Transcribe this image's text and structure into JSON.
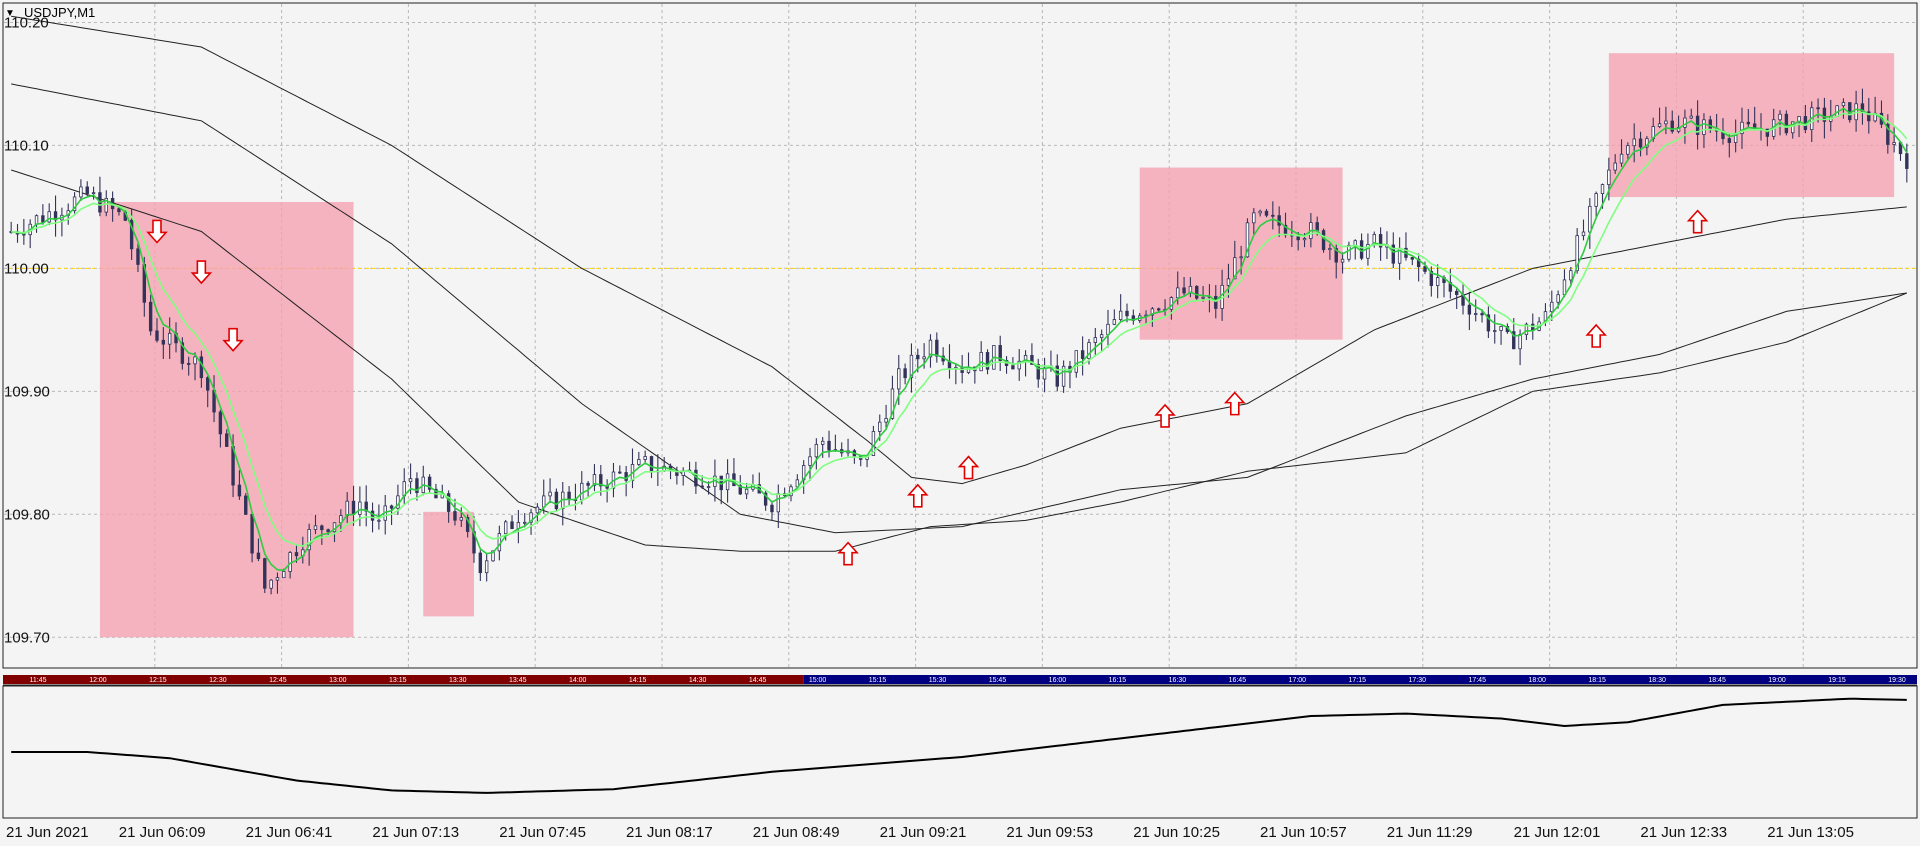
{
  "window": {
    "symbol_title": "USDJPY,M1",
    "menu_glyph": "▼"
  },
  "colors": {
    "background": "#f4f4f4",
    "grid": "#b8b8b8",
    "candle": "#33335a",
    "fast_ma": "#2ecc40",
    "slow_ma": "#7fff7f",
    "trend_ma": "#222222",
    "zone": "#f5a0b0",
    "arrow": "#e00000",
    "session_bar_red": "#800000",
    "session_bar_blue": "#000080",
    "level_line": "#ffd700"
  },
  "chart_data": {
    "type": "candlestick",
    "symbol": "USDJPY",
    "timeframe": "M1",
    "ylim": [
      109.675,
      110.215
    ],
    "y_ticks": [
      "110.20",
      "110.10",
      "110.00",
      "109.90",
      "109.80",
      "109.70"
    ],
    "x_tick_labels": [
      "21 Jun 2021",
      "21 Jun 06:09",
      "21 Jun 06:41",
      "21 Jun 07:13",
      "21 Jun 07:45",
      "21 Jun 08:17",
      "21 Jun 08:49",
      "21 Jun 09:21",
      "21 Jun 09:53",
      "21 Jun 10:25",
      "21 Jun 10:57",
      "21 Jun 11:29",
      "21 Jun 12:01",
      "21 Jun 12:33",
      "21 Jun 13:05"
    ],
    "horizontal_level": 110.0,
    "bars": 300,
    "price_path": [
      [
        0,
        110.03
      ],
      [
        12,
        110.06
      ],
      [
        18,
        110.04
      ],
      [
        22,
        109.95
      ],
      [
        30,
        109.92
      ],
      [
        40,
        109.74
      ],
      [
        46,
        109.78
      ],
      [
        55,
        109.81
      ],
      [
        58,
        109.79
      ],
      [
        63,
        109.83
      ],
      [
        70,
        109.8
      ],
      [
        74,
        109.76
      ],
      [
        80,
        109.8
      ],
      [
        90,
        109.82
      ],
      [
        100,
        109.84
      ],
      [
        110,
        109.83
      ],
      [
        120,
        109.81
      ],
      [
        128,
        109.86
      ],
      [
        134,
        109.84
      ],
      [
        140,
        109.91
      ],
      [
        145,
        109.94
      ],
      [
        150,
        109.92
      ],
      [
        156,
        109.93
      ],
      [
        165,
        109.91
      ],
      [
        175,
        109.96
      ],
      [
        185,
        109.98
      ],
      [
        190,
        109.97
      ],
      [
        196,
        110.04
      ],
      [
        205,
        110.03
      ],
      [
        210,
        110.01
      ],
      [
        215,
        110.02
      ],
      [
        222,
        110.0
      ],
      [
        230,
        109.97
      ],
      [
        236,
        109.94
      ],
      [
        242,
        109.96
      ],
      [
        248,
        110.03
      ],
      [
        254,
        110.1
      ],
      [
        262,
        110.12
      ],
      [
        272,
        110.11
      ],
      [
        282,
        110.12
      ],
      [
        292,
        110.13
      ],
      [
        299,
        110.09
      ]
    ],
    "trend_ma_a": [
      [
        0,
        110.205
      ],
      [
        30,
        110.18
      ],
      [
        60,
        110.1
      ],
      [
        90,
        110.0
      ],
      [
        120,
        109.92
      ],
      [
        135,
        109.86
      ],
      [
        142,
        109.83
      ],
      [
        150,
        109.825
      ],
      [
        160,
        109.84
      ],
      [
        175,
        109.87
      ],
      [
        195,
        109.89
      ],
      [
        215,
        109.95
      ],
      [
        240,
        110.0
      ],
      [
        260,
        110.02
      ],
      [
        280,
        110.04
      ],
      [
        299,
        110.05
      ]
    ],
    "trend_ma_b": [
      [
        0,
        110.15
      ],
      [
        30,
        110.12
      ],
      [
        60,
        110.02
      ],
      [
        90,
        109.89
      ],
      [
        115,
        109.8
      ],
      [
        130,
        109.785
      ],
      [
        150,
        109.79
      ],
      [
        175,
        109.82
      ],
      [
        195,
        109.83
      ],
      [
        220,
        109.88
      ],
      [
        240,
        109.91
      ],
      [
        260,
        109.93
      ],
      [
        280,
        109.965
      ],
      [
        299,
        109.98
      ]
    ],
    "trend_ma_c": [
      [
        0,
        110.08
      ],
      [
        30,
        110.03
      ],
      [
        60,
        109.91
      ],
      [
        80,
        109.81
      ],
      [
        100,
        109.775
      ],
      [
        115,
        109.77
      ],
      [
        130,
        109.77
      ],
      [
        145,
        109.79
      ],
      [
        160,
        109.795
      ],
      [
        175,
        109.81
      ],
      [
        195,
        109.835
      ],
      [
        220,
        109.85
      ],
      [
        240,
        109.9
      ],
      [
        260,
        109.915
      ],
      [
        280,
        109.94
      ],
      [
        299,
        109.98
      ]
    ],
    "highlight_zones": [
      {
        "from_bar": 14,
        "to_bar": 54,
        "low": 109.7,
        "high": 110.054
      },
      {
        "from_bar": 65,
        "to_bar": 73,
        "low": 109.717,
        "high": 109.802
      },
      {
        "from_bar": 178,
        "to_bar": 210,
        "low": 109.942,
        "high": 110.082
      },
      {
        "from_bar": 252,
        "to_bar": 297,
        "low": 110.058,
        "high": 110.175
      }
    ],
    "signal_arrows": [
      {
        "bar": 23,
        "price": 110.03,
        "direction": "down"
      },
      {
        "bar": 30,
        "price": 109.997,
        "direction": "down"
      },
      {
        "bar": 35,
        "price": 109.942,
        "direction": "down"
      },
      {
        "bar": 132,
        "price": 109.768,
        "direction": "up"
      },
      {
        "bar": 143,
        "price": 109.815,
        "direction": "up"
      },
      {
        "bar": 151,
        "price": 109.838,
        "direction": "up"
      },
      {
        "bar": 182,
        "price": 109.88,
        "direction": "up"
      },
      {
        "bar": 193,
        "price": 109.89,
        "direction": "up"
      },
      {
        "bar": 250,
        "price": 109.945,
        "direction": "up"
      },
      {
        "bar": 266,
        "price": 110.038,
        "direction": "up"
      }
    ],
    "session_bar": {
      "labels": [
        "11:45",
        "12:00",
        "12:15",
        "12:30",
        "12:45",
        "13:00",
        "13:15",
        "13:30",
        "13:45",
        "14:00",
        "14:15",
        "14:30",
        "14:45",
        "15:00",
        "15:15",
        "15:30",
        "15:45",
        "16:00",
        "16:15",
        "16:30",
        "16:45",
        "17:00",
        "17:15",
        "17:30",
        "17:45",
        "18:00",
        "18:15",
        "18:30",
        "18:45",
        "19:00",
        "19:15",
        "19:30"
      ],
      "red_until_bar": 125
    },
    "indicator_path": [
      [
        0,
        0.5
      ],
      [
        12,
        0.5
      ],
      [
        25,
        0.45
      ],
      [
        45,
        0.27
      ],
      [
        60,
        0.19
      ],
      [
        75,
        0.17
      ],
      [
        95,
        0.2
      ],
      [
        120,
        0.34
      ],
      [
        150,
        0.46
      ],
      [
        180,
        0.64
      ],
      [
        205,
        0.79
      ],
      [
        220,
        0.81
      ],
      [
        235,
        0.77
      ],
      [
        245,
        0.71
      ],
      [
        255,
        0.74
      ],
      [
        270,
        0.88
      ],
      [
        290,
        0.93
      ],
      [
        299,
        0.92
      ]
    ]
  }
}
